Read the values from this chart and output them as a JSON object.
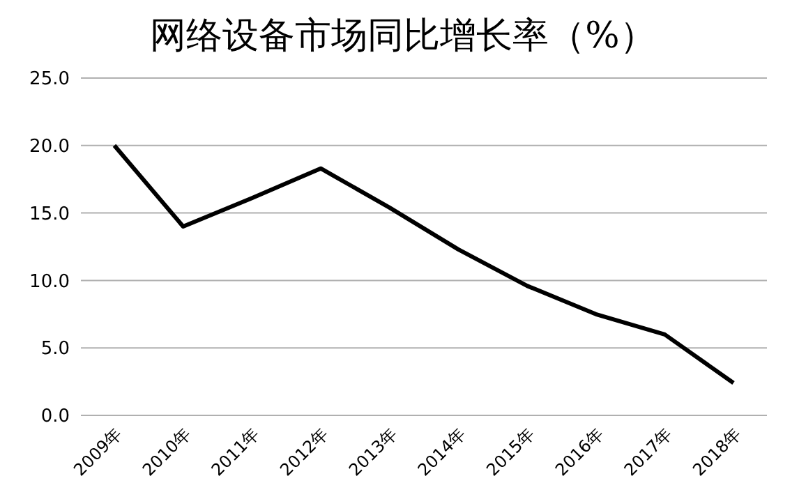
{
  "chart_data": {
    "type": "line",
    "title": "网络设备市场同比增长率（%）",
    "categories": [
      "2009年",
      "2010年",
      "2011年",
      "2012年",
      "2013年",
      "2014年",
      "2015年",
      "2016年",
      "2017年",
      "2018年"
    ],
    "series": [
      {
        "color": "#000000",
        "values": [
          20.0,
          14.0,
          16.1,
          18.3,
          15.4,
          12.3,
          9.6,
          7.5,
          6.0,
          2.4
        ]
      }
    ],
    "ylim": [
      0,
      25
    ],
    "yticks": [
      {
        "value": 0,
        "label": "0.0"
      },
      {
        "value": 5,
        "label": "5.0"
      },
      {
        "value": 10,
        "label": "10.0"
      },
      {
        "value": 15,
        "label": "15.0"
      },
      {
        "value": 20,
        "label": "20.0"
      },
      {
        "value": 25,
        "label": "25.0"
      }
    ],
    "grid": "y",
    "legend": false,
    "marker": "none",
    "line_style": "solid"
  }
}
